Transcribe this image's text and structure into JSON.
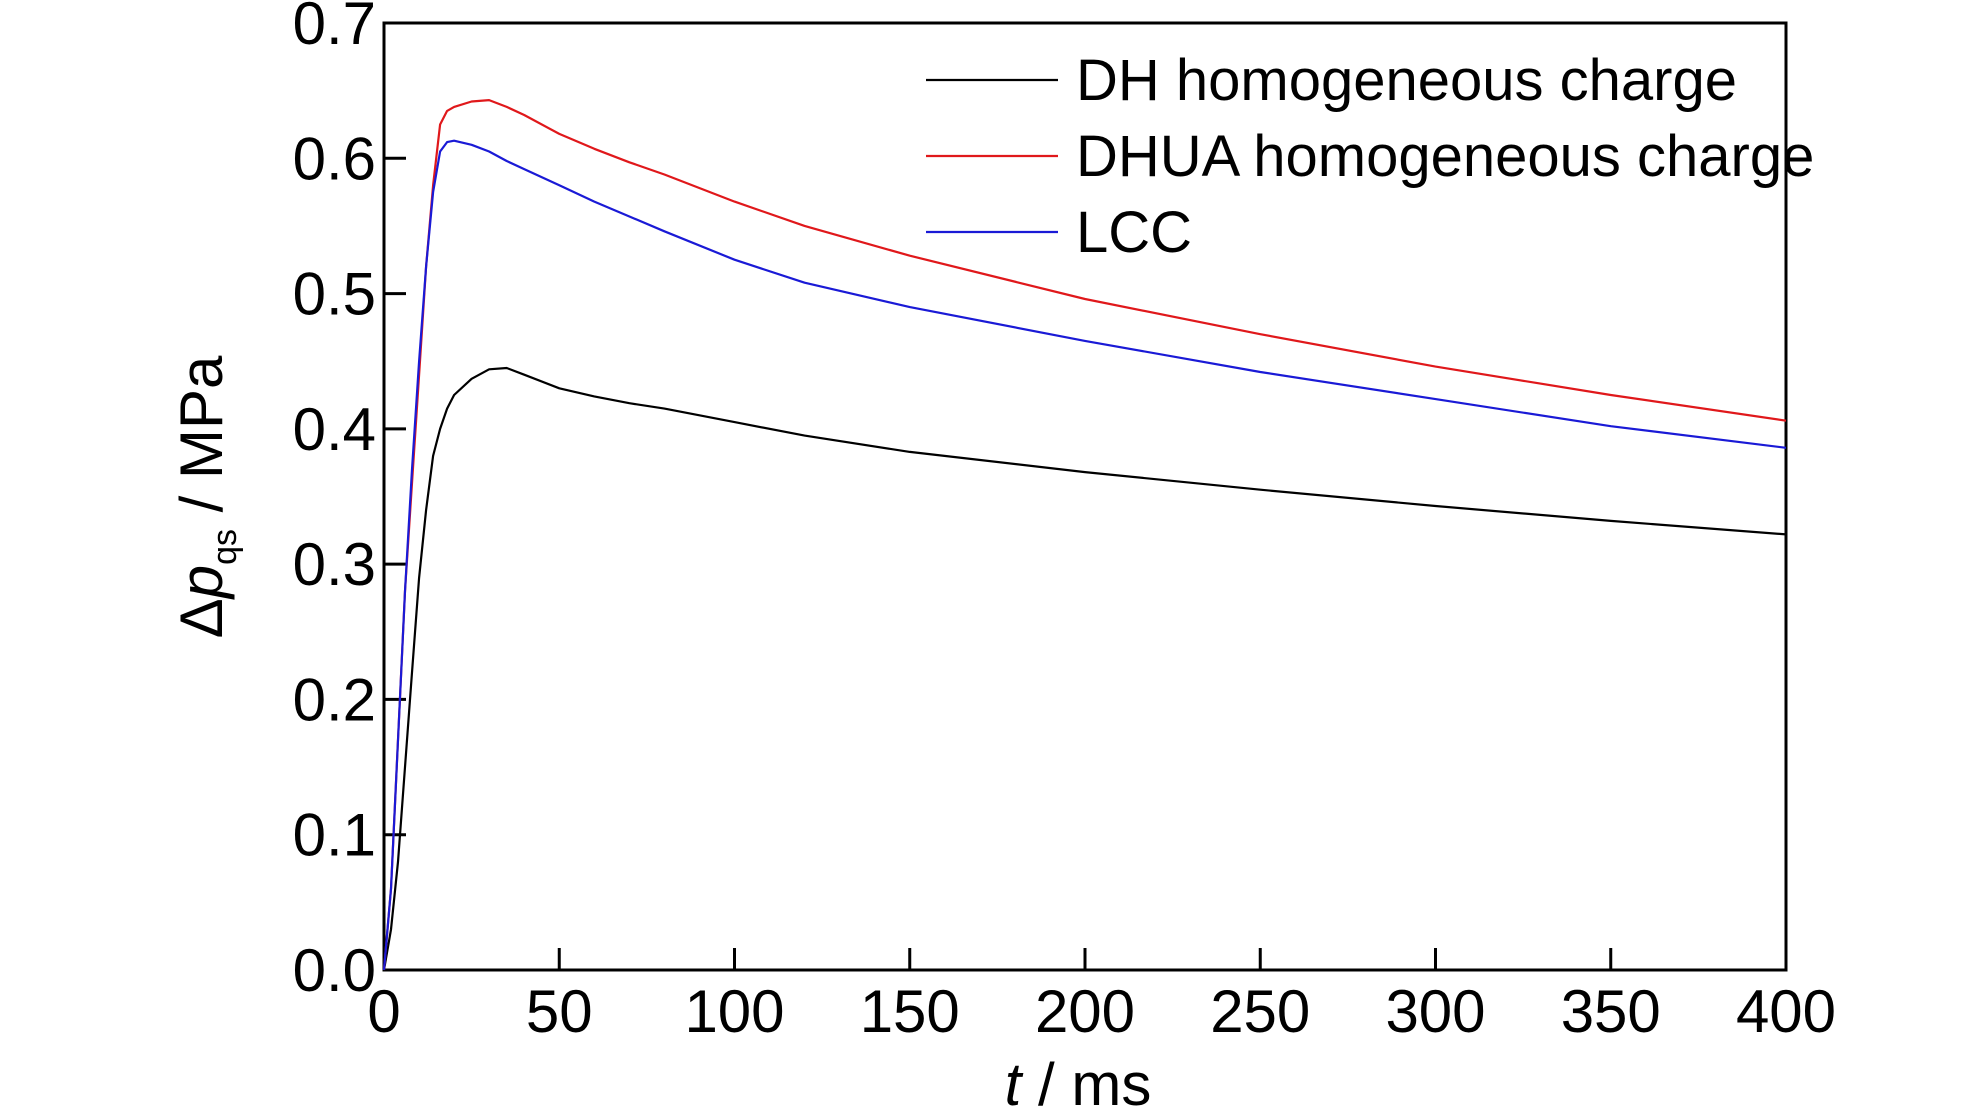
{
  "chart_data": {
    "type": "line",
    "xlabel": {
      "var": "t",
      "unit": " / ms"
    },
    "ylabel": {
      "prefix": "Δ",
      "var": "p",
      "sub": "qs",
      "unit": " / MPa"
    },
    "xlim": [
      0,
      400
    ],
    "ylim": [
      0,
      0.7
    ],
    "x_ticks": [
      0,
      50,
      100,
      150,
      200,
      250,
      300,
      350,
      400
    ],
    "y_ticks": [
      0,
      0.1,
      0.2,
      0.3,
      0.4,
      0.5,
      0.6,
      0.7
    ],
    "x_tick_labels": [
      "0",
      "50",
      "100",
      "150",
      "200",
      "250",
      "300",
      "350",
      "400"
    ],
    "y_tick_labels": [
      "0.0",
      "0.1",
      "0.2",
      "0.3",
      "0.4",
      "0.5",
      "0.6",
      "0.7"
    ],
    "grid": false,
    "legend_position": "top-right",
    "series": [
      {
        "name": "DH homogeneous charge",
        "color": "#000000",
        "x": [
          0,
          2,
          4,
          6,
          8,
          10,
          12,
          14,
          16,
          18,
          20,
          25,
          30,
          35,
          40,
          50,
          60,
          70,
          80,
          100,
          120,
          150,
          200,
          250,
          300,
          350,
          400
        ],
        "y": [
          0,
          0.03,
          0.08,
          0.15,
          0.22,
          0.29,
          0.34,
          0.38,
          0.4,
          0.415,
          0.425,
          0.437,
          0.444,
          0.445,
          0.44,
          0.43,
          0.424,
          0.419,
          0.415,
          0.405,
          0.395,
          0.383,
          0.368,
          0.355,
          0.343,
          0.332,
          0.322
        ]
      },
      {
        "name": "DHUA homogeneous charge",
        "color": "#e0181b",
        "x": [
          0,
          2,
          4,
          6,
          8,
          10,
          12,
          14,
          16,
          18,
          20,
          25,
          30,
          35,
          40,
          50,
          60,
          70,
          80,
          100,
          120,
          150,
          200,
          250,
          300,
          350,
          400
        ],
        "y": [
          0,
          0.06,
          0.17,
          0.28,
          0.36,
          0.44,
          0.52,
          0.58,
          0.625,
          0.635,
          0.638,
          0.642,
          0.643,
          0.638,
          0.632,
          0.618,
          0.607,
          0.597,
          0.588,
          0.568,
          0.55,
          0.528,
          0.496,
          0.47,
          0.446,
          0.425,
          0.406
        ]
      },
      {
        "name": "LCC",
        "color": "#1a1ad6",
        "x": [
          0,
          2,
          4,
          6,
          8,
          10,
          12,
          14,
          16,
          18,
          20,
          25,
          30,
          35,
          40,
          50,
          60,
          70,
          80,
          100,
          120,
          150,
          200,
          250,
          300,
          350,
          400
        ],
        "y": [
          0,
          0.06,
          0.17,
          0.28,
          0.37,
          0.45,
          0.52,
          0.575,
          0.605,
          0.612,
          0.613,
          0.61,
          0.605,
          0.598,
          0.592,
          0.58,
          0.568,
          0.557,
          0.546,
          0.525,
          0.508,
          0.49,
          0.465,
          0.442,
          0.422,
          0.402,
          0.386
        ]
      }
    ]
  }
}
